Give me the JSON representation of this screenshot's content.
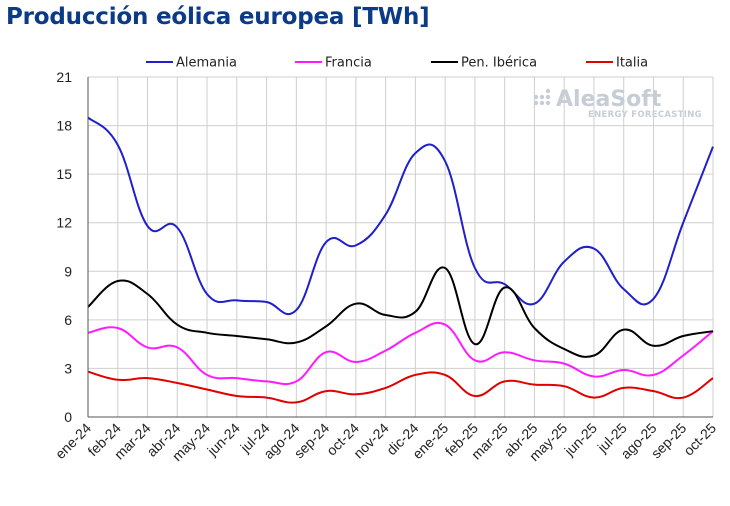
{
  "chart_data": {
    "type": "line",
    "title": "Producción eólica europea [TWh]",
    "xlabel": "",
    "ylabel": "",
    "ylim": [
      0,
      21
    ],
    "yticks": [
      0,
      3,
      6,
      9,
      12,
      15,
      18,
      21
    ],
    "grid": true,
    "legend_position": "top",
    "categories": [
      "ene-24",
      "feb-24",
      "mar-24",
      "abr-24",
      "may-24",
      "jun-24",
      "jul-24",
      "ago-24",
      "sep-24",
      "oct-24",
      "nov-24",
      "dic-24",
      "ene-25",
      "feb-25",
      "mar-25",
      "abr-25",
      "may-25",
      "jun-25",
      "jul-25",
      "ago-25",
      "sep-25",
      "oct-25"
    ],
    "series": [
      {
        "name": "Alemania",
        "color": "#1f1fcc",
        "values": [
          18.5,
          16.8,
          11.8,
          11.7,
          7.6,
          7.2,
          7.1,
          6.6,
          10.8,
          10.6,
          12.5,
          16.3,
          15.8,
          9.2,
          8.2,
          7.0,
          9.6,
          10.4,
          7.9,
          7.3,
          12.0,
          16.7
        ]
      },
      {
        "name": "Francia",
        "color": "#ff1aff",
        "values": [
          5.2,
          5.5,
          4.3,
          4.3,
          2.6,
          2.4,
          2.2,
          2.2,
          4.0,
          3.4,
          4.1,
          5.2,
          5.7,
          3.5,
          4.0,
          3.5,
          3.3,
          2.5,
          2.9,
          2.6,
          3.8,
          5.3
        ]
      },
      {
        "name": "Pen. Ibérica",
        "color": "#000000",
        "values": [
          6.8,
          8.4,
          7.6,
          5.7,
          5.2,
          5.0,
          4.8,
          4.6,
          5.6,
          7.0,
          6.3,
          6.5,
          9.2,
          4.5,
          8.0,
          5.5,
          4.2,
          3.8,
          5.4,
          4.4,
          5.0,
          5.3
        ]
      },
      {
        "name": "Italia",
        "color": "#e00000",
        "values": [
          2.8,
          2.3,
          2.4,
          2.1,
          1.7,
          1.3,
          1.2,
          0.9,
          1.6,
          1.4,
          1.8,
          2.6,
          2.6,
          1.3,
          2.2,
          2.0,
          1.9,
          1.2,
          1.8,
          1.6,
          1.2,
          2.4
        ]
      }
    ]
  },
  "watermark": {
    "brand": "AleaSoft",
    "tagline": "ENERGY FORECASTING"
  }
}
